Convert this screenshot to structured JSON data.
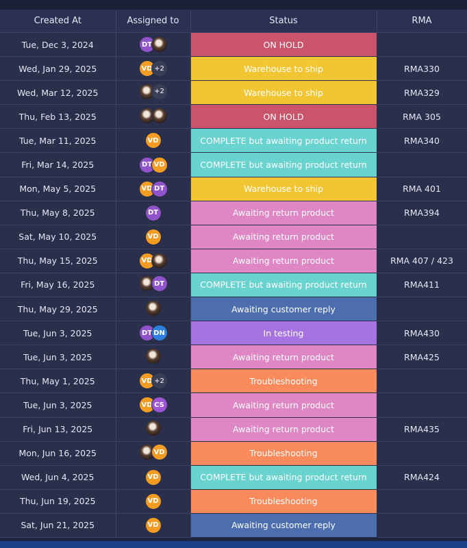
{
  "colors": {
    "on_hold": "#c9546b",
    "warehouse": "#f2c532",
    "complete_awaiting": "#69d3cf",
    "awaiting_return": "#df86c5",
    "awaiting_customer": "#4c6eaf",
    "in_testing": "#a773e0",
    "troubleshooting": "#f98a5b",
    "avatar_VD": "#f39c23",
    "avatar_DT": "#9153c9",
    "avatar_DN": "#2f7fe0",
    "avatar_CS": "#9d55d6"
  },
  "table": {
    "headers": [
      "Created At",
      "Assigned to",
      "Status",
      "RMA"
    ],
    "rows": [
      {
        "created": "Tue, Dec 3, 2024",
        "assignees": [
          "DT",
          "photo"
        ],
        "status": "ON HOLD",
        "rma": ""
      },
      {
        "created": "Wed, Jan 29, 2025",
        "assignees": [
          "VD",
          "+2"
        ],
        "status": "Warehouse to ship",
        "rma": "RMA330"
      },
      {
        "created": "Wed, Mar 12, 2025",
        "assignees": [
          "photo",
          "+2"
        ],
        "status": "Warehouse to ship",
        "rma": "RMA329"
      },
      {
        "created": "Thu, Feb 13, 2025",
        "assignees": [
          "photo",
          "photo"
        ],
        "status": "ON HOLD",
        "rma": "RMA 305"
      },
      {
        "created": "Tue, Mar 11, 2025",
        "assignees": [
          "VD"
        ],
        "status": "COMPLETE but awaiting product return",
        "rma": "RMA340"
      },
      {
        "created": "Fri, Mar 14, 2025",
        "assignees": [
          "DT",
          "VD"
        ],
        "status": "COMPLETE but awaiting product return",
        "rma": ""
      },
      {
        "created": "Mon, May 5, 2025",
        "assignees": [
          "VD",
          "DT"
        ],
        "status": "Warehouse to ship",
        "rma": "RMA 401"
      },
      {
        "created": "Thu, May 8, 2025",
        "assignees": [
          "DT"
        ],
        "status": "Awaiting return product",
        "rma": "RMA394"
      },
      {
        "created": "Sat, May 10, 2025",
        "assignees": [
          "VD"
        ],
        "status": "Awaiting return product",
        "rma": ""
      },
      {
        "created": "Thu, May 15, 2025",
        "assignees": [
          "VD",
          "photo"
        ],
        "status": "Awaiting return product",
        "rma": "RMA 407 / 423"
      },
      {
        "created": "Fri, May 16, 2025",
        "assignees": [
          "photo",
          "DT"
        ],
        "status": "COMPLETE but awaiting product return",
        "rma": "RMA411"
      },
      {
        "created": "Thu, May 29, 2025",
        "assignees": [
          "photo"
        ],
        "status": "Awaiting customer reply",
        "rma": ""
      },
      {
        "created": "Tue, Jun 3, 2025",
        "assignees": [
          "DT",
          "DN"
        ],
        "status": "In testing",
        "rma": "RMA430"
      },
      {
        "created": "Tue, Jun 3, 2025",
        "assignees": [
          "photo"
        ],
        "status": "Awaiting return product",
        "rma": "RMA425"
      },
      {
        "created": "Thu, May 1, 2025",
        "assignees": [
          "VD",
          "+2"
        ],
        "status": "Troubleshooting",
        "rma": ""
      },
      {
        "created": "Tue, Jun 3, 2025",
        "assignees": [
          "VD",
          "CS"
        ],
        "status": "Awaiting return product",
        "rma": ""
      },
      {
        "created": "Fri, Jun 13, 2025",
        "assignees": [
          "photo"
        ],
        "status": "Awaiting return product",
        "rma": "RMA435"
      },
      {
        "created": "Mon, Jun 16, 2025",
        "assignees": [
          "photo",
          "VD"
        ],
        "status": "Troubleshooting",
        "rma": ""
      },
      {
        "created": "Wed, Jun 4, 2025",
        "assignees": [
          "VD"
        ],
        "status": "COMPLETE but awaiting product return",
        "rma": "RMA424"
      },
      {
        "created": "Thu, Jun 19, 2025",
        "assignees": [
          "VD"
        ],
        "status": "Troubleshooting",
        "rma": ""
      },
      {
        "created": "Sat, Jun 21, 2025",
        "assignees": [
          "VD"
        ],
        "status": "Awaiting customer reply",
        "rma": ""
      }
    ]
  }
}
